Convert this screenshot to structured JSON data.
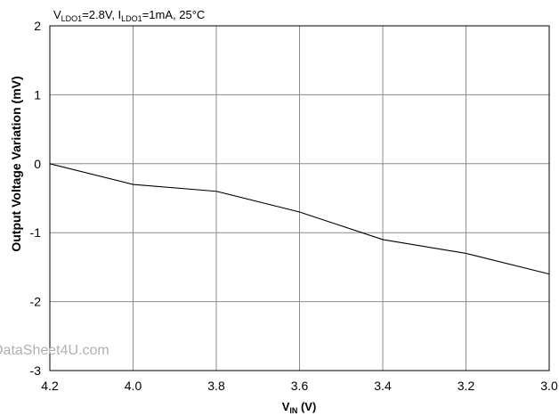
{
  "chart_data": {
    "type": "line",
    "title": {
      "parts": [
        {
          "text": "V",
          "sub": false
        },
        {
          "text": "LDO1",
          "sub": true
        },
        {
          "text": "=2.8V, I",
          "sub": false
        },
        {
          "text": "LDO1",
          "sub": true
        },
        {
          "text": "=1mA, 25°C",
          "sub": false
        }
      ]
    },
    "xlabel": {
      "main": "V",
      "sub": "IN",
      "unit": " (V)"
    },
    "ylabel": "Output Voltage Variation (mV)",
    "xlim": [
      4.2,
      3.0
    ],
    "ylim": [
      -3,
      2
    ],
    "x_ticks": [
      "4.2",
      "4.0",
      "3.8",
      "3.6",
      "3.4",
      "3.2",
      "3.0"
    ],
    "y_ticks": [
      "2",
      "1",
      "0",
      "-1",
      "-2",
      "-3"
    ],
    "grid": true,
    "series": [
      {
        "x": [
          4.2,
          4.0,
          3.8,
          3.6,
          3.4,
          3.2,
          3.0
        ],
        "y": [
          0.0,
          -0.3,
          -0.4,
          -0.7,
          -1.1,
          -1.3,
          -1.6
        ],
        "color": "#000000"
      }
    ],
    "watermark": "DataSheet4U.com"
  }
}
